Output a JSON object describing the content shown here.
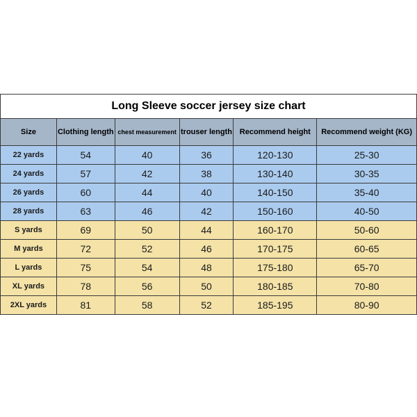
{
  "size_chart": {
    "type": "table",
    "title": "Long Sleeve soccer jersey size chart",
    "colors": {
      "header_bg": "#a5b6c9",
      "row_blue_bg": "#aacbee",
      "row_yellow_bg": "#f4e2a7",
      "border": "#3a3a3a",
      "page_bg": "#ffffff",
      "text": "#000000"
    },
    "fonts": {
      "title_size_pt": 16,
      "header_size_pt": 11,
      "header_small_size_pt": 9,
      "cell_size_pt": 14,
      "size_col_size_pt": 11,
      "header_weight": "700",
      "sizecol_weight": "700"
    },
    "column_widths_pct": [
      13.5,
      14,
      15.5,
      13,
      20,
      24
    ],
    "columns": [
      "Size",
      "Clothing length",
      "chest measurement",
      "trouser length",
      "Recommend height",
      "Recommend weight (KG)"
    ],
    "rows": [
      {
        "band": "blue",
        "cells": [
          "22 yards",
          "54",
          "40",
          "36",
          "120-130",
          "25-30"
        ]
      },
      {
        "band": "blue",
        "cells": [
          "24 yards",
          "57",
          "42",
          "38",
          "130-140",
          "30-35"
        ]
      },
      {
        "band": "blue",
        "cells": [
          "26 yards",
          "60",
          "44",
          "40",
          "140-150",
          "35-40"
        ]
      },
      {
        "band": "blue",
        "cells": [
          "28 yards",
          "63",
          "46",
          "42",
          "150-160",
          "40-50"
        ]
      },
      {
        "band": "yellow",
        "cells": [
          "S yards",
          "69",
          "50",
          "44",
          "160-170",
          "50-60"
        ]
      },
      {
        "band": "yellow",
        "cells": [
          "M yards",
          "72",
          "52",
          "46",
          "170-175",
          "60-65"
        ]
      },
      {
        "band": "yellow",
        "cells": [
          "L yards",
          "75",
          "54",
          "48",
          "175-180",
          "65-70"
        ]
      },
      {
        "band": "yellow",
        "cells": [
          "XL yards",
          "78",
          "56",
          "50",
          "180-185",
          "70-80"
        ]
      },
      {
        "band": "yellow",
        "cells": [
          "2XL yards",
          "81",
          "58",
          "52",
          "185-195",
          "80-90"
        ]
      }
    ]
  }
}
